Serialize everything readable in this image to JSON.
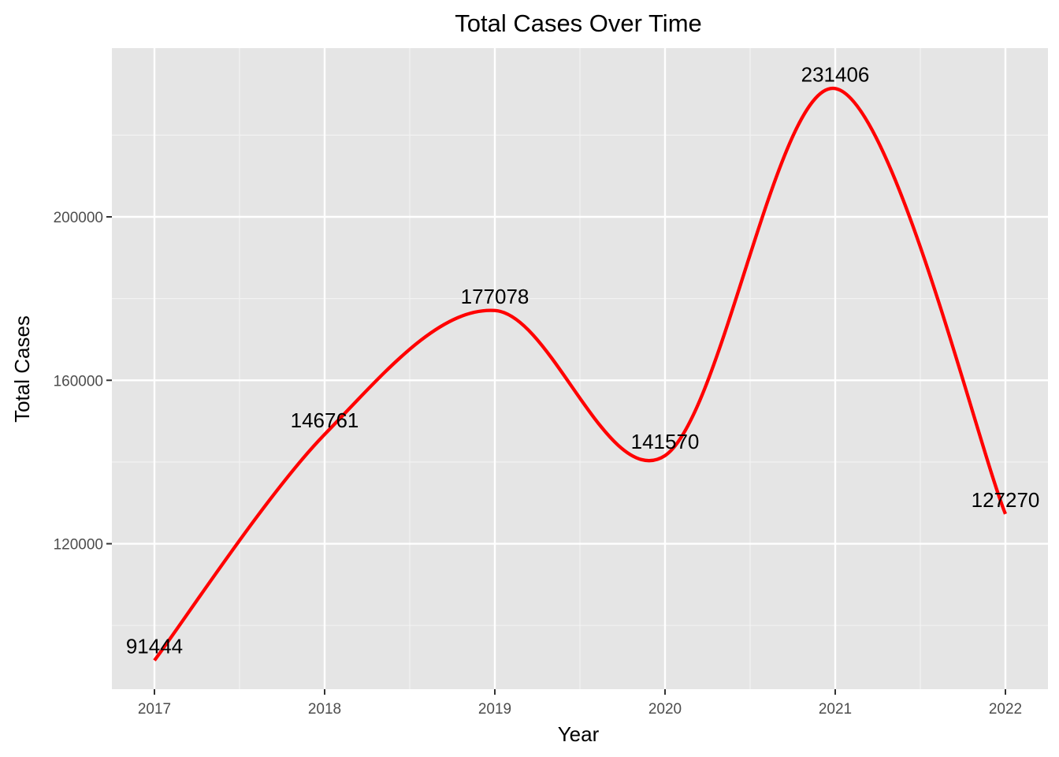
{
  "chart_data": {
    "type": "line",
    "title": "Total Cases Over Time",
    "xlabel": "Year",
    "ylabel": "Total Cases",
    "x": [
      2017,
      2018,
      2019,
      2020,
      2021,
      2022
    ],
    "y": [
      91444,
      146761,
      177078,
      141570,
      231406,
      127270
    ],
    "data_labels": [
      "91444",
      "146761",
      "177078",
      "141570",
      "231406",
      "127270"
    ],
    "x_ticks": [
      2017,
      2018,
      2019,
      2020,
      2021,
      2022
    ],
    "x_tick_labels": [
      "2017",
      "2018",
      "2019",
      "2020",
      "2021",
      "2022"
    ],
    "y_ticks": [
      120000,
      160000,
      200000
    ],
    "y_tick_labels": [
      "120000",
      "160000",
      "200000"
    ],
    "xlim": [
      2016.75,
      2022.25
    ],
    "ylim": [
      84400,
      241300
    ],
    "line_color": "#ff0000",
    "panel_background": "#e5e5e5",
    "grid": true,
    "smoothed": true
  }
}
